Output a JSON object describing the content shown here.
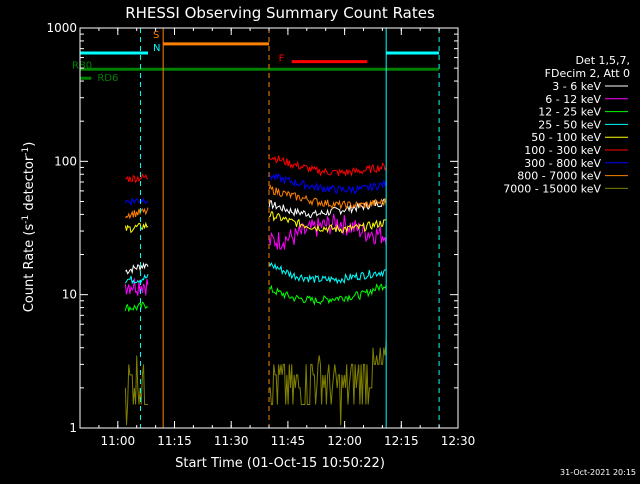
{
  "chart_data": {
    "type": "line",
    "title": "RHESSI Observing Summary Count Rates",
    "xlabel": "Start Time (01-Oct-15 10:50:22)",
    "ylabel_prefix": "Count Rate (s",
    "ylabel_sup1": "-1",
    "ylabel_mid": " detector",
    "ylabel_sup2": "-1",
    "ylabel_suffix": ")",
    "ylog": true,
    "ylim": [
      1,
      1000
    ],
    "xlim": [
      "10:50",
      "12:30"
    ],
    "x_ticks": [
      "11:00",
      "11:15",
      "11:30",
      "11:45",
      "12:00",
      "12:15",
      "12:30"
    ],
    "y_ticks": [
      "1",
      "10",
      "100",
      "1000"
    ],
    "timestamp": "31-Oct-2021 20:15",
    "legend_header": [
      "Det 1,5,7,",
      "FDecim 2, Att 0"
    ],
    "colors": {
      "background": "#000000",
      "axes": "#ffffff"
    },
    "series": [
      {
        "name": "3 - 6 keV",
        "color": "#ffffff",
        "seg1": [
          15,
          16,
          17
        ],
        "seg2": [
          48,
          42,
          40,
          43,
          46,
          50
        ]
      },
      {
        "name": "6 - 12 keV",
        "color": "#ff00ff",
        "seg1": [
          12,
          12,
          12
        ],
        "seg2": [
          25,
          27,
          32,
          35,
          30,
          28
        ]
      },
      {
        "name": "12 - 25 keV",
        "color": "#00ff00",
        "seg1": [
          8,
          8,
          8.5
        ],
        "seg2": [
          11,
          9.5,
          9,
          9.5,
          10,
          12
        ]
      },
      {
        "name": "25 - 50 keV",
        "color": "#00ffff",
        "seg1": [
          13,
          13,
          13.5
        ],
        "seg2": [
          17,
          14,
          13,
          13,
          14,
          15
        ]
      },
      {
        "name": "50 - 100 keV",
        "color": "#ffff00",
        "seg1": [
          31,
          32,
          33
        ],
        "seg2": [
          40,
          35,
          32,
          31,
          32,
          35
        ]
      },
      {
        "name": "100 - 300 keV",
        "color": "#ff0000",
        "seg1": [
          74,
          75,
          76
        ],
        "seg2": [
          110,
          95,
          85,
          82,
          85,
          92
        ]
      },
      {
        "name": "300 - 800 keV",
        "color": "#0000ff",
        "seg1": [
          50,
          51,
          52
        ],
        "seg2": [
          78,
          70,
          64,
          61,
          62,
          68
        ]
      },
      {
        "name": "800 - 7000 keV",
        "color": "#ff8000",
        "seg1": [
          40,
          41,
          42
        ],
        "seg2": [
          62,
          55,
          50,
          47,
          47,
          50
        ]
      },
      {
        "name": "7000 - 15000 keV",
        "color": "#808000",
        "seg1": [
          2,
          2.5,
          2
        ],
        "seg2": [
          2.5,
          2,
          2.5,
          2,
          2.5,
          3
        ]
      }
    ],
    "segments": [
      {
        "x_start": "11:02",
        "x_end": "11:08"
      },
      {
        "x_start": "11:40",
        "x_end": "12:11"
      }
    ],
    "flag_lines": [
      {
        "label": "S",
        "color": "#ff8000",
        "level": 760,
        "x_start": "11:12",
        "x_end": "11:40"
      },
      {
        "label": "N",
        "color": "#00ffff",
        "level": 650,
        "x_start": "10:50",
        "x_end": "11:08",
        "x_start2": "12:11",
        "x_end2": "12:25"
      },
      {
        "label": "F",
        "color": "#ff0000",
        "level": 560,
        "x_start": "11:46",
        "x_end": "12:06"
      },
      {
        "label": "RB0",
        "color": "#008000",
        "level": 490,
        "x_start": "10:50",
        "x_end": "12:25"
      },
      {
        "label": "RD6",
        "color": "#008000",
        "level": 420,
        "x_start": "10:50",
        "x_end": "10:53"
      }
    ],
    "vlines": [
      {
        "x": "11:06",
        "color": "#00ffff",
        "dashed": true
      },
      {
        "x": "11:12",
        "color": "#ff8000",
        "dashed": false
      },
      {
        "x": "11:40",
        "color": "#ff8000",
        "dashed": true
      },
      {
        "x": "12:11",
        "color": "#00ffff",
        "dashed": false
      },
      {
        "x": "12:25",
        "color": "#00ffff",
        "dashed": true
      },
      {
        "x": "10:50",
        "color": "#00ffff",
        "dashed": false
      }
    ]
  }
}
